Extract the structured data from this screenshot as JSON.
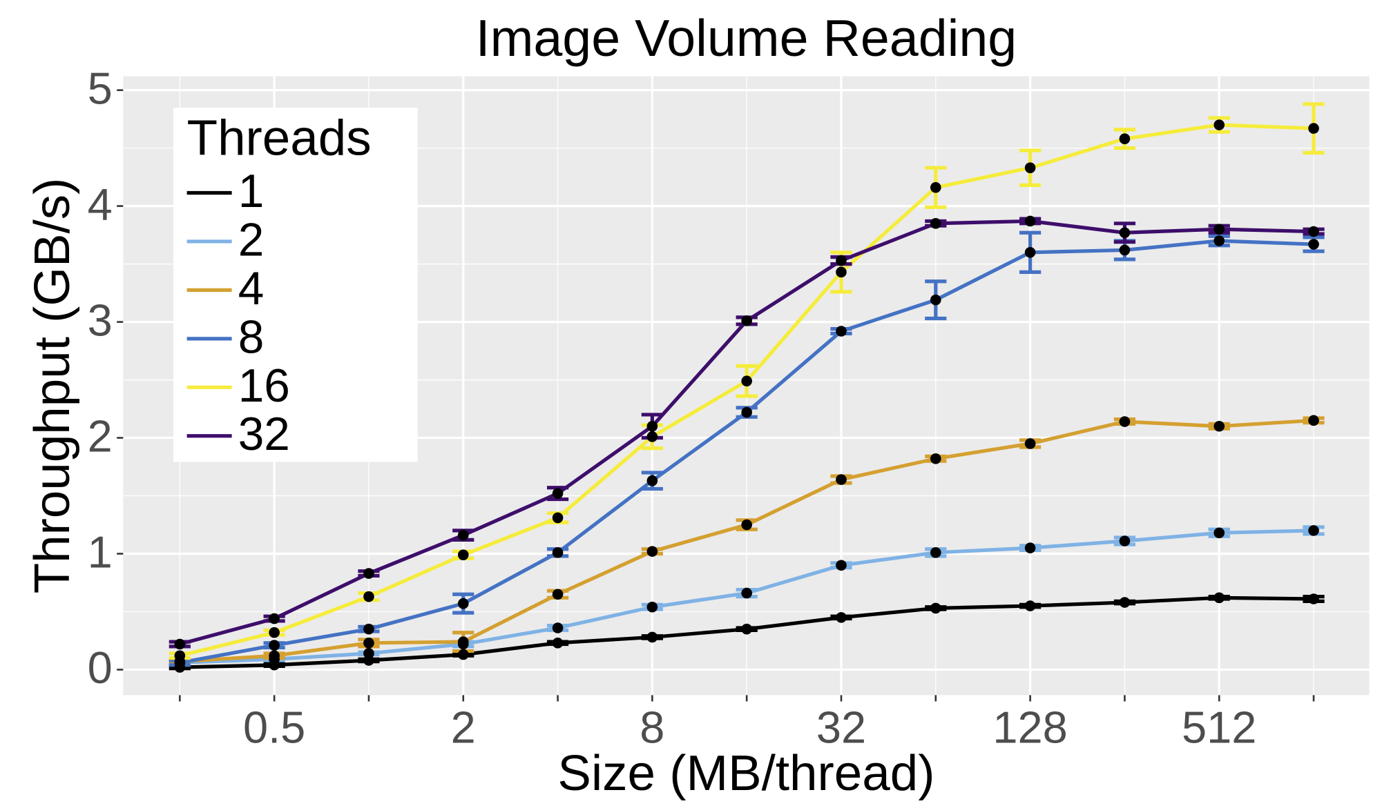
{
  "chart_data": {
    "type": "line",
    "title": "Image Volume Reading",
    "x_label": "Size (MB/thread)",
    "y_label": "Throughput (GB/s)",
    "x": [
      0.25,
      0.5,
      1,
      2,
      4,
      8,
      16,
      32,
      64,
      128,
      256,
      512,
      1024
    ],
    "xscale": "log",
    "log_base": 2,
    "xlim": [
      0.165,
      1540
    ],
    "xticks": [
      0.5,
      2,
      8,
      32,
      128,
      512
    ],
    "minor_xticks": [
      0.25,
      1,
      4,
      16,
      64,
      256,
      1024
    ],
    "ylim": [
      -0.22,
      5.12
    ],
    "yticks": [
      0,
      1,
      2,
      3,
      4,
      5
    ],
    "minor_yticks": [
      0.5,
      1.5,
      2.5,
      3.5,
      4.5
    ],
    "grid": true,
    "legend_title": "Threads",
    "legend": "top-left",
    "point_color": "#000000",
    "series": [
      {
        "name": "1",
        "color": "#000000",
        "values": [
          0.02,
          0.04,
          0.08,
          0.13,
          0.23,
          0.28,
          0.35,
          0.45,
          0.53,
          0.55,
          0.58,
          0.62,
          0.61
        ],
        "errors": [
          0.01,
          0.01,
          0.01,
          0.01,
          0.01,
          0.01,
          0.01,
          0.01,
          0.01,
          0.01,
          0.01,
          0.01,
          0.02
        ]
      },
      {
        "name": "2",
        "color": "#7fb2e5",
        "values": [
          0.06,
          0.09,
          0.14,
          0.22,
          0.36,
          0.54,
          0.66,
          0.9,
          1.01,
          1.05,
          1.11,
          1.18,
          1.2
        ],
        "errors": [
          0.01,
          0.01,
          0.01,
          0.02,
          0.02,
          0.02,
          0.03,
          0.02,
          0.03,
          0.02,
          0.03,
          0.03,
          0.03
        ]
      },
      {
        "name": "4",
        "color": "#d4a030",
        "values": [
          0.07,
          0.12,
          0.23,
          0.24,
          0.65,
          1.02,
          1.25,
          1.64,
          1.82,
          1.95,
          2.14,
          2.1,
          2.15
        ],
        "errors": [
          0.01,
          0.02,
          0.03,
          0.08,
          0.03,
          0.02,
          0.04,
          0.03,
          0.02,
          0.03,
          0.02,
          0.02,
          0.02
        ]
      },
      {
        "name": "8",
        "color": "#4472c4",
        "values": [
          0.06,
          0.21,
          0.35,
          0.57,
          1.01,
          1.63,
          2.22,
          2.92,
          3.19,
          3.6,
          3.62,
          3.7,
          3.67
        ],
        "errors": [
          0.02,
          0.02,
          0.02,
          0.08,
          0.03,
          0.07,
          0.04,
          0.02,
          0.16,
          0.17,
          0.08,
          0.04,
          0.06
        ]
      },
      {
        "name": "16",
        "color": "#f5ec3b",
        "values": [
          0.12,
          0.32,
          0.63,
          0.99,
          1.31,
          2.01,
          2.49,
          3.43,
          4.16,
          4.33,
          4.58,
          4.7,
          4.67
        ],
        "errors": [
          0.02,
          0.02,
          0.03,
          0.03,
          0.04,
          0.1,
          0.13,
          0.17,
          0.17,
          0.15,
          0.08,
          0.06,
          0.21
        ]
      },
      {
        "name": "32",
        "color": "#3e0e6b",
        "values": [
          0.22,
          0.44,
          0.83,
          1.16,
          1.52,
          2.1,
          3.01,
          3.53,
          3.85,
          3.87,
          3.77,
          3.8,
          3.78
        ],
        "errors": [
          0.02,
          0.02,
          0.02,
          0.04,
          0.05,
          0.1,
          0.03,
          0.03,
          0.02,
          0.02,
          0.08,
          0.03,
          0.02
        ]
      }
    ]
  }
}
